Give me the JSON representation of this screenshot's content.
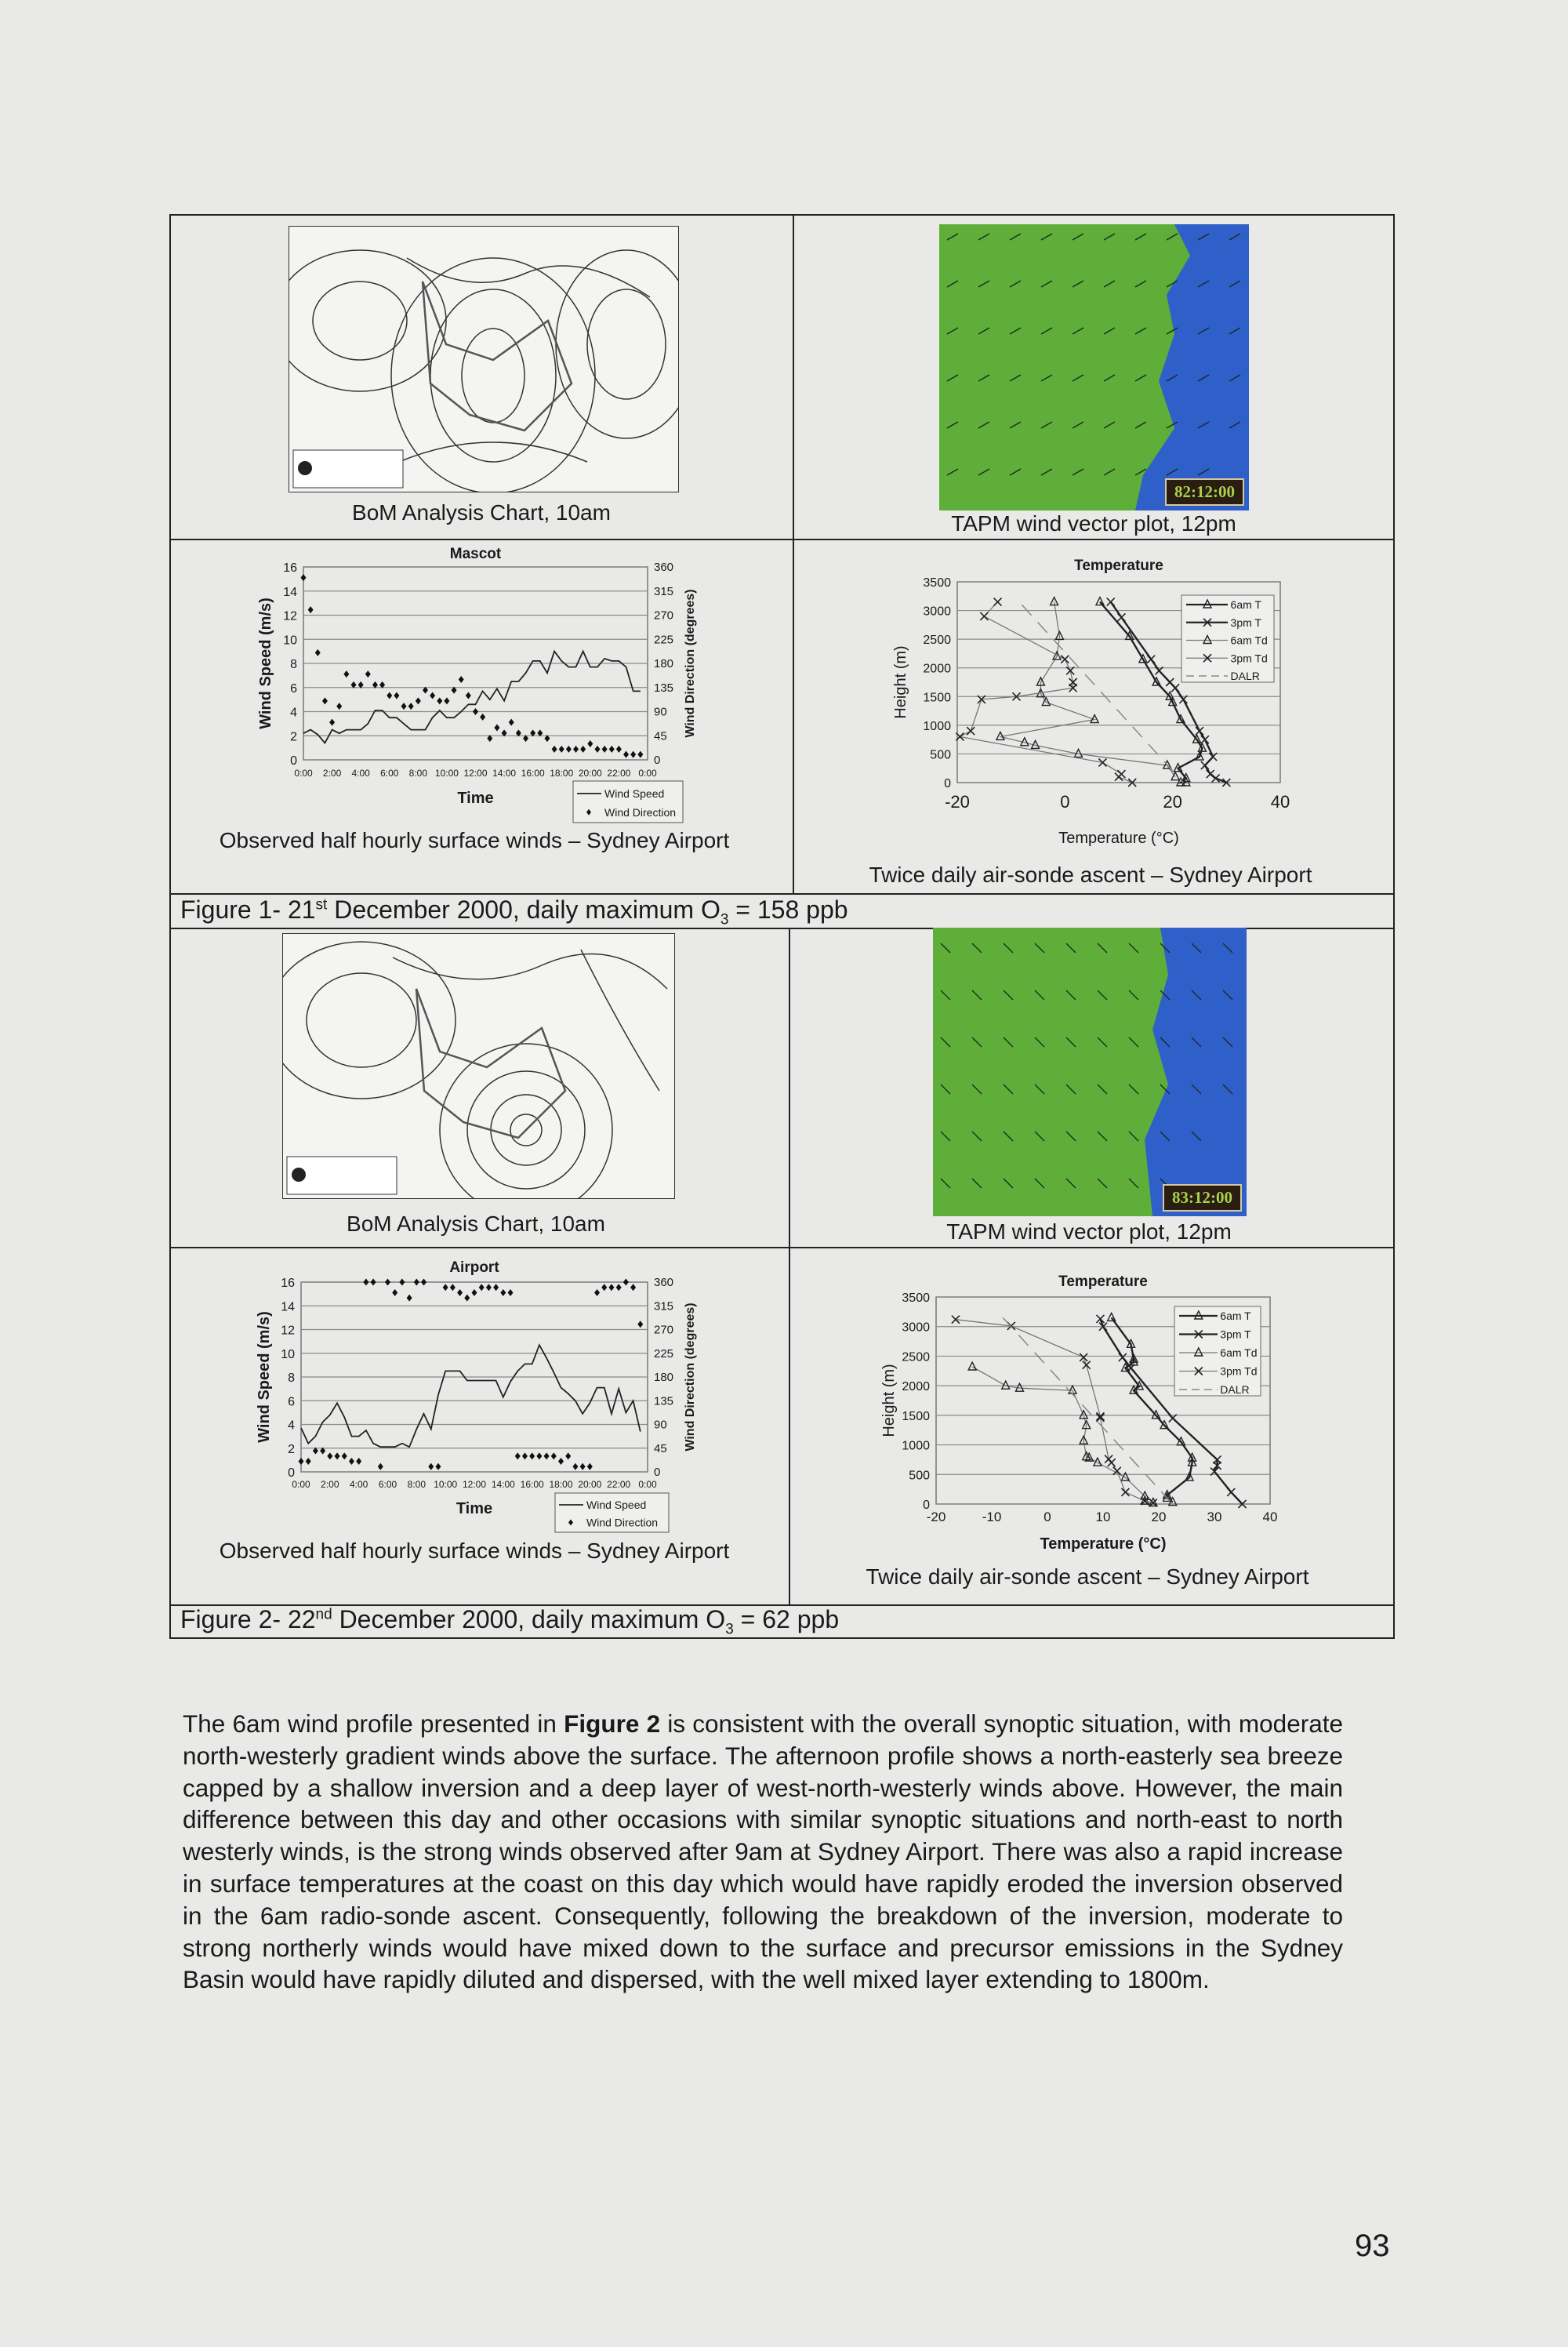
{
  "figure1": {
    "caption_prefix": "Figure 1- 21",
    "caption_sup": "st",
    "caption_mid": " December 2000, daily maximum O",
    "caption_sub": "3",
    "caption_suffix": " = 158 ppb",
    "map_caption": "BoM Analysis Chart, 10am",
    "tapm_caption": "TAPM wind vector plot, 12pm",
    "tapm_timestamp": "82:12:00",
    "wind_caption": "Observed half hourly surface winds – Sydney Airport",
    "sonde_caption": "Twice daily air-sonde ascent – Sydney Airport"
  },
  "figure2": {
    "caption_prefix": "Figure 2- 22",
    "caption_sup": "nd",
    "caption_mid": " December 2000, daily maximum O",
    "caption_sub": "3",
    "caption_suffix": " = 62 ppb",
    "map_caption": "BoM Analysis Chart, 10am",
    "tapm_caption": "TAPM wind vector plot, 12pm",
    "tapm_timestamp": "83:12:00",
    "wind_caption": "Observed half hourly surface winds – Sydney Airport",
    "sonde_caption": "Twice daily air-sonde ascent – Sydney Airport"
  },
  "chart_data": [
    {
      "id": "fig1_wind",
      "type": "line",
      "title": "Mascot",
      "xlabel": "Time",
      "ylabel": "Wind Speed (m/s)",
      "y2label": "Wind Direction (degrees)",
      "xticks": [
        "0:00",
        "2:00",
        "4:00",
        "6:00",
        "8:00",
        "10:00",
        "12:00",
        "14:00",
        "16:00",
        "18:00",
        "20:00",
        "22:00",
        "0:00"
      ],
      "ylim": [
        0,
        16
      ],
      "yticks": [
        0,
        2,
        4,
        6,
        8,
        10,
        12,
        14,
        16
      ],
      "y2lim": [
        0,
        360
      ],
      "y2ticks": [
        0,
        45,
        90,
        135,
        180,
        225,
        270,
        315,
        360
      ],
      "grid": true,
      "legend": "bottom-right",
      "interval_hours": 0.5,
      "series": [
        {
          "name": "Wind Speed",
          "kind": "line",
          "axis": "left",
          "values": [
            2.2,
            2.5,
            2.1,
            1.4,
            2.5,
            2.2,
            2.5,
            2.5,
            2.5,
            3,
            4.1,
            4.1,
            3.5,
            3.5,
            3,
            2.5,
            2.5,
            2.5,
            3.5,
            4.1,
            3.5,
            3.5,
            4,
            4.6,
            4.6,
            5.7,
            5,
            5.9,
            4.9,
            6.5,
            6.5,
            7.2,
            8.2,
            8.2,
            7.2,
            9,
            8.2,
            7.7,
            7.7,
            9,
            7.7,
            7.7,
            8.4,
            8.2,
            8.2,
            7.7,
            5.7,
            5.7
          ]
        },
        {
          "name": "Wind Direction",
          "kind": "scatter",
          "axis": "right",
          "values": [
            340,
            280,
            200,
            110,
            70,
            100,
            160,
            140,
            140,
            160,
            140,
            140,
            120,
            120,
            100,
            100,
            110,
            130,
            120,
            110,
            110,
            130,
            150,
            120,
            90,
            80,
            40,
            60,
            50,
            70,
            50,
            40,
            50,
            50,
            40,
            20,
            20,
            20,
            20,
            20,
            30,
            20,
            20,
            20,
            20,
            10,
            10,
            10
          ]
        }
      ]
    },
    {
      "id": "fig1_sonde",
      "type": "line",
      "title": "Temperature",
      "xlabel": "Temperature (°C)",
      "ylabel": "Height (m)",
      "xlim": [
        -20,
        40
      ],
      "xticks": [
        -20,
        0,
        20,
        40
      ],
      "ylim": [
        0,
        3500
      ],
      "yticks": [
        0,
        500,
        1000,
        1500,
        2000,
        2500,
        3000,
        3500
      ],
      "grid": true,
      "legend": "top-right",
      "series": [
        {
          "name": "6am T",
          "marker": "triangle",
          "style": "thick",
          "points": [
            [
              6.5,
              3150
            ],
            [
              12,
              2550
            ],
            [
              14.5,
              2150
            ],
            [
              17,
              1750
            ],
            [
              19.5,
              1500
            ],
            [
              20,
              1400
            ],
            [
              21.5,
              1100
            ],
            [
              24.5,
              750
            ],
            [
              25.5,
              600
            ],
            [
              25,
              450
            ],
            [
              21,
              250
            ],
            [
              22.5,
              75
            ],
            [
              21.5,
              0
            ],
            [
              22.5,
              0
            ]
          ]
        },
        {
          "name": "3pm T",
          "marker": "x",
          "style": "thick",
          "points": [
            [
              8.5,
              3150
            ],
            [
              10.5,
              2880
            ],
            [
              16,
              2150
            ],
            [
              17.5,
              1950
            ],
            [
              19.5,
              1750
            ],
            [
              20.5,
              1650
            ],
            [
              22,
              1450
            ],
            [
              25,
              900
            ],
            [
              26,
              750
            ],
            [
              27.5,
              450
            ],
            [
              26,
              300
            ],
            [
              27,
              150
            ],
            [
              28,
              75
            ],
            [
              30,
              0
            ]
          ]
        },
        {
          "name": "6am Td",
          "marker": "triangle",
          "style": "thin",
          "points": [
            [
              -2,
              3150
            ],
            [
              -1,
              2550
            ],
            [
              -1.5,
              2200
            ],
            [
              -4.5,
              1750
            ],
            [
              -4.5,
              1550
            ],
            [
              -3.5,
              1400
            ],
            [
              5.5,
              1100
            ],
            [
              -12,
              800
            ],
            [
              -7.5,
              700
            ],
            [
              -5.5,
              650
            ],
            [
              2.5,
              500
            ],
            [
              19,
              300
            ],
            [
              20.5,
              100
            ]
          ]
        },
        {
          "name": "3pm Td",
          "marker": "x",
          "style": "thin",
          "points": [
            [
              -12.5,
              3150
            ],
            [
              -15,
              2900
            ],
            [
              0,
              2150
            ],
            [
              1,
              1950
            ],
            [
              1.5,
              1750
            ],
            [
              1.5,
              1650
            ],
            [
              -9,
              1500
            ],
            [
              -15.5,
              1450
            ],
            [
              -17.5,
              900
            ],
            [
              -19.5,
              800
            ],
            [
              7,
              350
            ],
            [
              10.5,
              150
            ],
            [
              10,
              100
            ],
            [
              12.5,
              0
            ]
          ]
        },
        {
          "name": "DALR",
          "marker": "none",
          "style": "dashed",
          "points": [
            [
              -8,
              3100
            ],
            [
              22,
              0
            ]
          ]
        }
      ]
    },
    {
      "id": "fig2_wind",
      "type": "line",
      "title": "Airport",
      "xlabel": "Time",
      "ylabel": "Wind Speed (m/s)",
      "y2label": "Wind Direction (degrees)",
      "xticks": [
        "0:00",
        "2:00",
        "4:00",
        "6:00",
        "8:00",
        "10:00",
        "12:00",
        "14:00",
        "16:00",
        "18:00",
        "20:00",
        "22:00",
        "0:00"
      ],
      "ylim": [
        0,
        16
      ],
      "yticks": [
        0,
        2,
        4,
        6,
        8,
        10,
        12,
        14,
        16
      ],
      "y2lim": [
        0,
        360
      ],
      "y2ticks": [
        0,
        45,
        90,
        135,
        180,
        225,
        270,
        315,
        360
      ],
      "grid": true,
      "legend": "bottom-right",
      "interval_hours": 0.5,
      "series": [
        {
          "name": "Wind Speed",
          "kind": "line",
          "axis": "left",
          "values": [
            3.7,
            2.4,
            3,
            4.2,
            4.8,
            5.8,
            4.6,
            3,
            3,
            3.5,
            2.4,
            2.1,
            2.1,
            2.1,
            2.4,
            2.1,
            3.6,
            4.9,
            3.6,
            6.5,
            8.5,
            8.5,
            8.5,
            7.7,
            7.7,
            7.7,
            7.7,
            7.7,
            6.3,
            7.6,
            8.5,
            9.1,
            9.1,
            10.7,
            9.6,
            8.4,
            7.1,
            6.6,
            6,
            4.9,
            5.8,
            7.1,
            7.1,
            4.9,
            7,
            5,
            6,
            3.4
          ]
        },
        {
          "name": "Wind Direction",
          "kind": "scatter",
          "axis": "right",
          "values": [
            20,
            20,
            40,
            40,
            30,
            30,
            30,
            20,
            20,
            360,
            360,
            10,
            360,
            340,
            360,
            330,
            360,
            360,
            10,
            10,
            350,
            350,
            340,
            330,
            340,
            350,
            350,
            350,
            340,
            340,
            30,
            30,
            30,
            30,
            30,
            30,
            20,
            30,
            10,
            10,
            10,
            340,
            350,
            350,
            350,
            360,
            350,
            280
          ]
        }
      ]
    },
    {
      "id": "fig2_sonde",
      "type": "line",
      "title": "Temperature",
      "xlabel": "Temperature (°C)",
      "ylabel": "Height (m)",
      "xlim": [
        -20,
        40
      ],
      "xticks": [
        -20,
        -10,
        0,
        10,
        20,
        30,
        40
      ],
      "ylim": [
        0,
        3500
      ],
      "yticks": [
        0,
        500,
        1000,
        1500,
        2000,
        2500,
        3000,
        3500
      ],
      "grid": true,
      "legend": "top-right",
      "series": [
        {
          "name": "6am T",
          "marker": "triangle",
          "style": "thick",
          "points": [
            [
              11.5,
              3150
            ],
            [
              15,
              2700
            ],
            [
              15.5,
              2450
            ],
            [
              15.5,
              2400
            ],
            [
              14,
              2300
            ],
            [
              16.5,
              1990
            ],
            [
              15.5,
              1920
            ],
            [
              19.5,
              1500
            ],
            [
              21,
              1330
            ],
            [
              24,
              1050
            ],
            [
              26,
              780
            ],
            [
              26,
              700
            ],
            [
              25.5,
              450
            ],
            [
              21.5,
              150
            ],
            [
              21.5,
              100
            ],
            [
              22.5,
              30
            ]
          ]
        },
        {
          "name": "3pm T",
          "marker": "x",
          "style": "thick",
          "points": [
            [
              9.5,
              3130
            ],
            [
              10,
              3000
            ],
            [
              13.5,
              2480
            ],
            [
              15,
              2300
            ],
            [
              22.5,
              1450
            ],
            [
              30.5,
              750
            ],
            [
              30.5,
              650
            ],
            [
              30,
              550
            ],
            [
              33,
              200
            ],
            [
              35,
              0
            ]
          ]
        },
        {
          "name": "6am Td",
          "marker": "triangle",
          "style": "thin",
          "points": [
            [
              -13.5,
              2320
            ],
            [
              -7.5,
              2000
            ],
            [
              -5,
              1960
            ],
            [
              4.5,
              1920
            ],
            [
              6.5,
              1500
            ],
            [
              7,
              1330
            ],
            [
              6.5,
              1070
            ],
            [
              7,
              800
            ],
            [
              7.5,
              780
            ],
            [
              9,
              700
            ],
            [
              14,
              450
            ],
            [
              17.5,
              130
            ],
            [
              17.5,
              50
            ],
            [
              19,
              20
            ]
          ]
        },
        {
          "name": "3pm Td",
          "marker": "x",
          "style": "thin",
          "points": [
            [
              -16.5,
              3120
            ],
            [
              -6.5,
              3010
            ],
            [
              6.5,
              2480
            ],
            [
              7,
              2350
            ],
            [
              9.5,
              1480
            ],
            [
              9.5,
              1460
            ],
            [
              11,
              760
            ],
            [
              11.5,
              700
            ],
            [
              12.5,
              560
            ],
            [
              14,
              200
            ],
            [
              17.5,
              50
            ],
            [
              19,
              20
            ]
          ]
        },
        {
          "name": "DALR",
          "marker": "none",
          "style": "dashed",
          "points": [
            [
              -8,
              3150
            ],
            [
              22,
              50
            ]
          ]
        }
      ]
    }
  ],
  "body": {
    "p1_before": "The 6am wind profile presented in ",
    "p1_bold": "Figure 2",
    "p1_after": " is consistent with the overall synoptic situation, with moderate north-westerly gradient winds above the surface. The afternoon profile shows a north-easterly sea breeze capped by a shallow inversion and a deep layer of west-north-westerly winds above. However, the main difference between this day and other occasions with similar synoptic situations and north-east to north westerly winds, is the strong winds observed after 9am at Sydney Airport. There was also a rapid increase in surface temperatures at the coast on this day which would have rapidly eroded the inversion observed in the 6am radio-sonde ascent. Consequently, following the breakdown of the inversion, moderate to strong northerly winds would have mixed down to the surface and precursor emissions in the Sydney Basin would have rapidly diluted and dispersed, with the well mixed layer extending to 1800m."
  },
  "page_number": "93",
  "colors": {
    "land": "#5fae3a",
    "sea": "#2f5fc8",
    "stamp_text": "#a8d24a"
  }
}
